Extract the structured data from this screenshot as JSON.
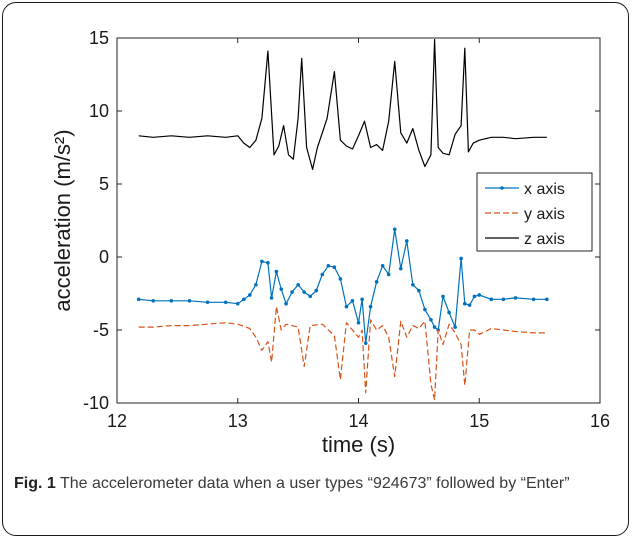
{
  "figure": {
    "caption_label": "Fig. 1",
    "caption_text": "The accelerometer data when a user types “924673” followed by “Enter”"
  },
  "chart_data": {
    "type": "line",
    "xlabel": "time (s)",
    "ylabel": "acceleration (m/s²)",
    "xlim": [
      12,
      16
    ],
    "ylim": [
      -10,
      15
    ],
    "xticks": [
      12,
      13,
      14,
      15,
      16
    ],
    "yticks": [
      -10,
      -5,
      0,
      5,
      10,
      15
    ],
    "grid": false,
    "legend_position": "right",
    "series": [
      {
        "name": "x axis",
        "color": "#0072BD",
        "style": "solid-dots",
        "x": [
          12.18,
          12.3,
          12.45,
          12.6,
          12.75,
          12.9,
          13.0,
          13.05,
          13.1,
          13.15,
          13.2,
          13.25,
          13.28,
          13.32,
          13.36,
          13.4,
          13.45,
          13.5,
          13.55,
          13.6,
          13.65,
          13.7,
          13.75,
          13.8,
          13.85,
          13.9,
          13.95,
          14.0,
          14.03,
          14.06,
          14.1,
          14.15,
          14.2,
          14.25,
          14.3,
          14.35,
          14.4,
          14.45,
          14.5,
          14.55,
          14.6,
          14.63,
          14.66,
          14.7,
          14.75,
          14.8,
          14.85,
          14.88,
          14.92,
          14.96,
          15.0,
          15.1,
          15.2,
          15.3,
          15.45,
          15.56
        ],
        "values": [
          -2.9,
          -3.0,
          -3.0,
          -3.0,
          -3.1,
          -3.1,
          -3.2,
          -2.9,
          -2.6,
          -1.9,
          -0.3,
          -0.4,
          -2.8,
          -1.0,
          -2.2,
          -3.2,
          -2.4,
          -1.9,
          -2.4,
          -2.7,
          -2.3,
          -1.2,
          -0.6,
          -0.7,
          -1.5,
          -3.4,
          -3.0,
          -4.5,
          -2.9,
          -5.9,
          -3.4,
          -1.7,
          -0.6,
          -1.2,
          1.9,
          -0.8,
          1.1,
          -1.9,
          -2.3,
          -3.6,
          -4.3,
          -4.8,
          -5.0,
          -2.7,
          -3.8,
          -4.8,
          -0.1,
          -3.2,
          -3.3,
          -2.7,
          -2.6,
          -2.9,
          -2.9,
          -2.8,
          -2.9,
          -2.9
        ]
      },
      {
        "name": "y axis",
        "color": "#D95319",
        "style": "dashed",
        "x": [
          12.18,
          12.3,
          12.45,
          12.6,
          12.75,
          12.9,
          13.0,
          13.1,
          13.15,
          13.2,
          13.25,
          13.28,
          13.32,
          13.36,
          13.4,
          13.5,
          13.55,
          13.6,
          13.7,
          13.8,
          13.85,
          13.9,
          13.95,
          14.0,
          14.03,
          14.06,
          14.1,
          14.15,
          14.2,
          14.25,
          14.3,
          14.35,
          14.4,
          14.45,
          14.5,
          14.55,
          14.6,
          14.63,
          14.66,
          14.7,
          14.75,
          14.8,
          14.85,
          14.88,
          14.92,
          14.96,
          15.0,
          15.1,
          15.2,
          15.3,
          15.45,
          15.56
        ],
        "values": [
          -4.8,
          -4.8,
          -4.7,
          -4.7,
          -4.6,
          -4.5,
          -4.6,
          -4.9,
          -5.5,
          -6.4,
          -5.8,
          -7.2,
          -3.4,
          -5.0,
          -4.6,
          -4.8,
          -7.5,
          -4.7,
          -4.6,
          -5.4,
          -8.4,
          -4.5,
          -5.0,
          -5.5,
          -5.0,
          -9.3,
          -4.3,
          -5.0,
          -4.7,
          -5.5,
          -8.2,
          -4.4,
          -5.5,
          -4.7,
          -4.9,
          -4.4,
          -8.7,
          -9.8,
          -5.0,
          -6.0,
          -4.6,
          -5.2,
          -6.0,
          -8.8,
          -5.0,
          -5.0,
          -5.3,
          -4.9,
          -5.0,
          -5.1,
          -5.2,
          -5.2
        ]
      },
      {
        "name": "z axis",
        "color": "#000000",
        "style": "solid",
        "x": [
          12.18,
          12.3,
          12.45,
          12.6,
          12.75,
          12.9,
          13.0,
          13.05,
          13.1,
          13.15,
          13.2,
          13.25,
          13.3,
          13.34,
          13.38,
          13.42,
          13.46,
          13.5,
          13.53,
          13.57,
          13.62,
          13.66,
          13.7,
          13.74,
          13.8,
          13.85,
          13.9,
          13.95,
          14.0,
          14.05,
          14.1,
          14.15,
          14.2,
          14.25,
          14.3,
          14.35,
          14.4,
          14.45,
          14.5,
          14.55,
          14.6,
          14.63,
          14.66,
          14.7,
          14.75,
          14.8,
          14.85,
          14.88,
          14.91,
          14.95,
          15.0,
          15.1,
          15.2,
          15.3,
          15.45,
          15.56
        ],
        "values": [
          8.3,
          8.2,
          8.3,
          8.2,
          8.3,
          8.2,
          8.3,
          7.8,
          7.5,
          8.0,
          9.5,
          14.1,
          7.0,
          7.6,
          9.0,
          7.0,
          6.7,
          9.5,
          13.6,
          7.5,
          6.0,
          7.5,
          8.5,
          9.5,
          12.7,
          8.0,
          7.6,
          7.4,
          8.3,
          9.3,
          7.5,
          7.7,
          7.3,
          9.3,
          13.4,
          8.5,
          7.8,
          8.8,
          7.3,
          6.2,
          7.0,
          14.9,
          7.5,
          7.1,
          7.0,
          8.4,
          9.0,
          14.3,
          7.2,
          7.8,
          8.0,
          8.2,
          8.2,
          8.1,
          8.2,
          8.2
        ]
      }
    ]
  }
}
